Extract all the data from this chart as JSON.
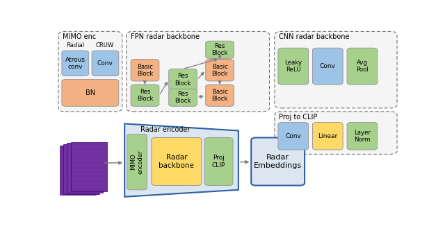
{
  "fig_width": 6.4,
  "fig_height": 3.26,
  "bg_color": "#ffffff",
  "colors": {
    "green_block": "#a8d08d",
    "orange_block": "#f4b183",
    "blue_block": "#9dc3e6",
    "yellow_block": "#ffd966",
    "purple_radar": "#7030a0",
    "trapezoid_fill": "#dce6f1",
    "trapezoid_border": "#2e5fa3",
    "radar_embed_fill": "#dce6f1",
    "radar_embed_border": "#2e5fa3",
    "arrow_color": "#808080",
    "container_edge": "#606060"
  },
  "layout": {
    "mimo_container": [
      0.008,
      0.515,
      0.185,
      0.46
    ],
    "fpn_container": [
      0.205,
      0.515,
      0.415,
      0.46
    ],
    "cnn_container": [
      0.635,
      0.535,
      0.355,
      0.225
    ],
    "proj_container": [
      0.635,
      0.285,
      0.355,
      0.215
    ]
  }
}
